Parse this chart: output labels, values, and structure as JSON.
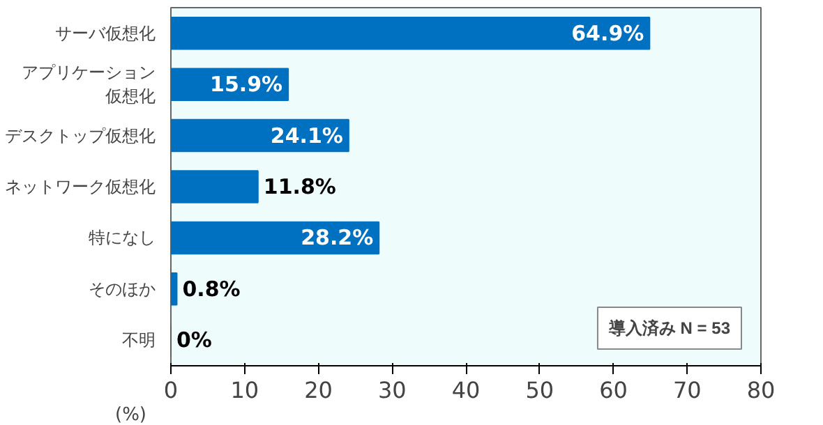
{
  "chart_data": {
    "type": "bar",
    "orientation": "horizontal",
    "categories": [
      "サーバ仮想化",
      "アプリケーション仮想化",
      "デスクトップ仮想化",
      "ネットワーク仮想化",
      "特になし",
      "そのほか",
      "不明"
    ],
    "values": [
      64.9,
      15.9,
      24.1,
      11.8,
      28.2,
      0.8,
      0
    ],
    "value_labels": [
      "64.9%",
      "15.9%",
      "24.1%",
      "11.8%",
      "28.2%",
      "0.8%",
      "0%"
    ],
    "color": "#0070c0",
    "xlim": [
      0,
      80
    ],
    "xticks": [
      0,
      10,
      20,
      30,
      40,
      50,
      60,
      70,
      80
    ],
    "xlabel": "(%)",
    "annotations": [
      "導入済み N = 53"
    ],
    "grid": false
  }
}
